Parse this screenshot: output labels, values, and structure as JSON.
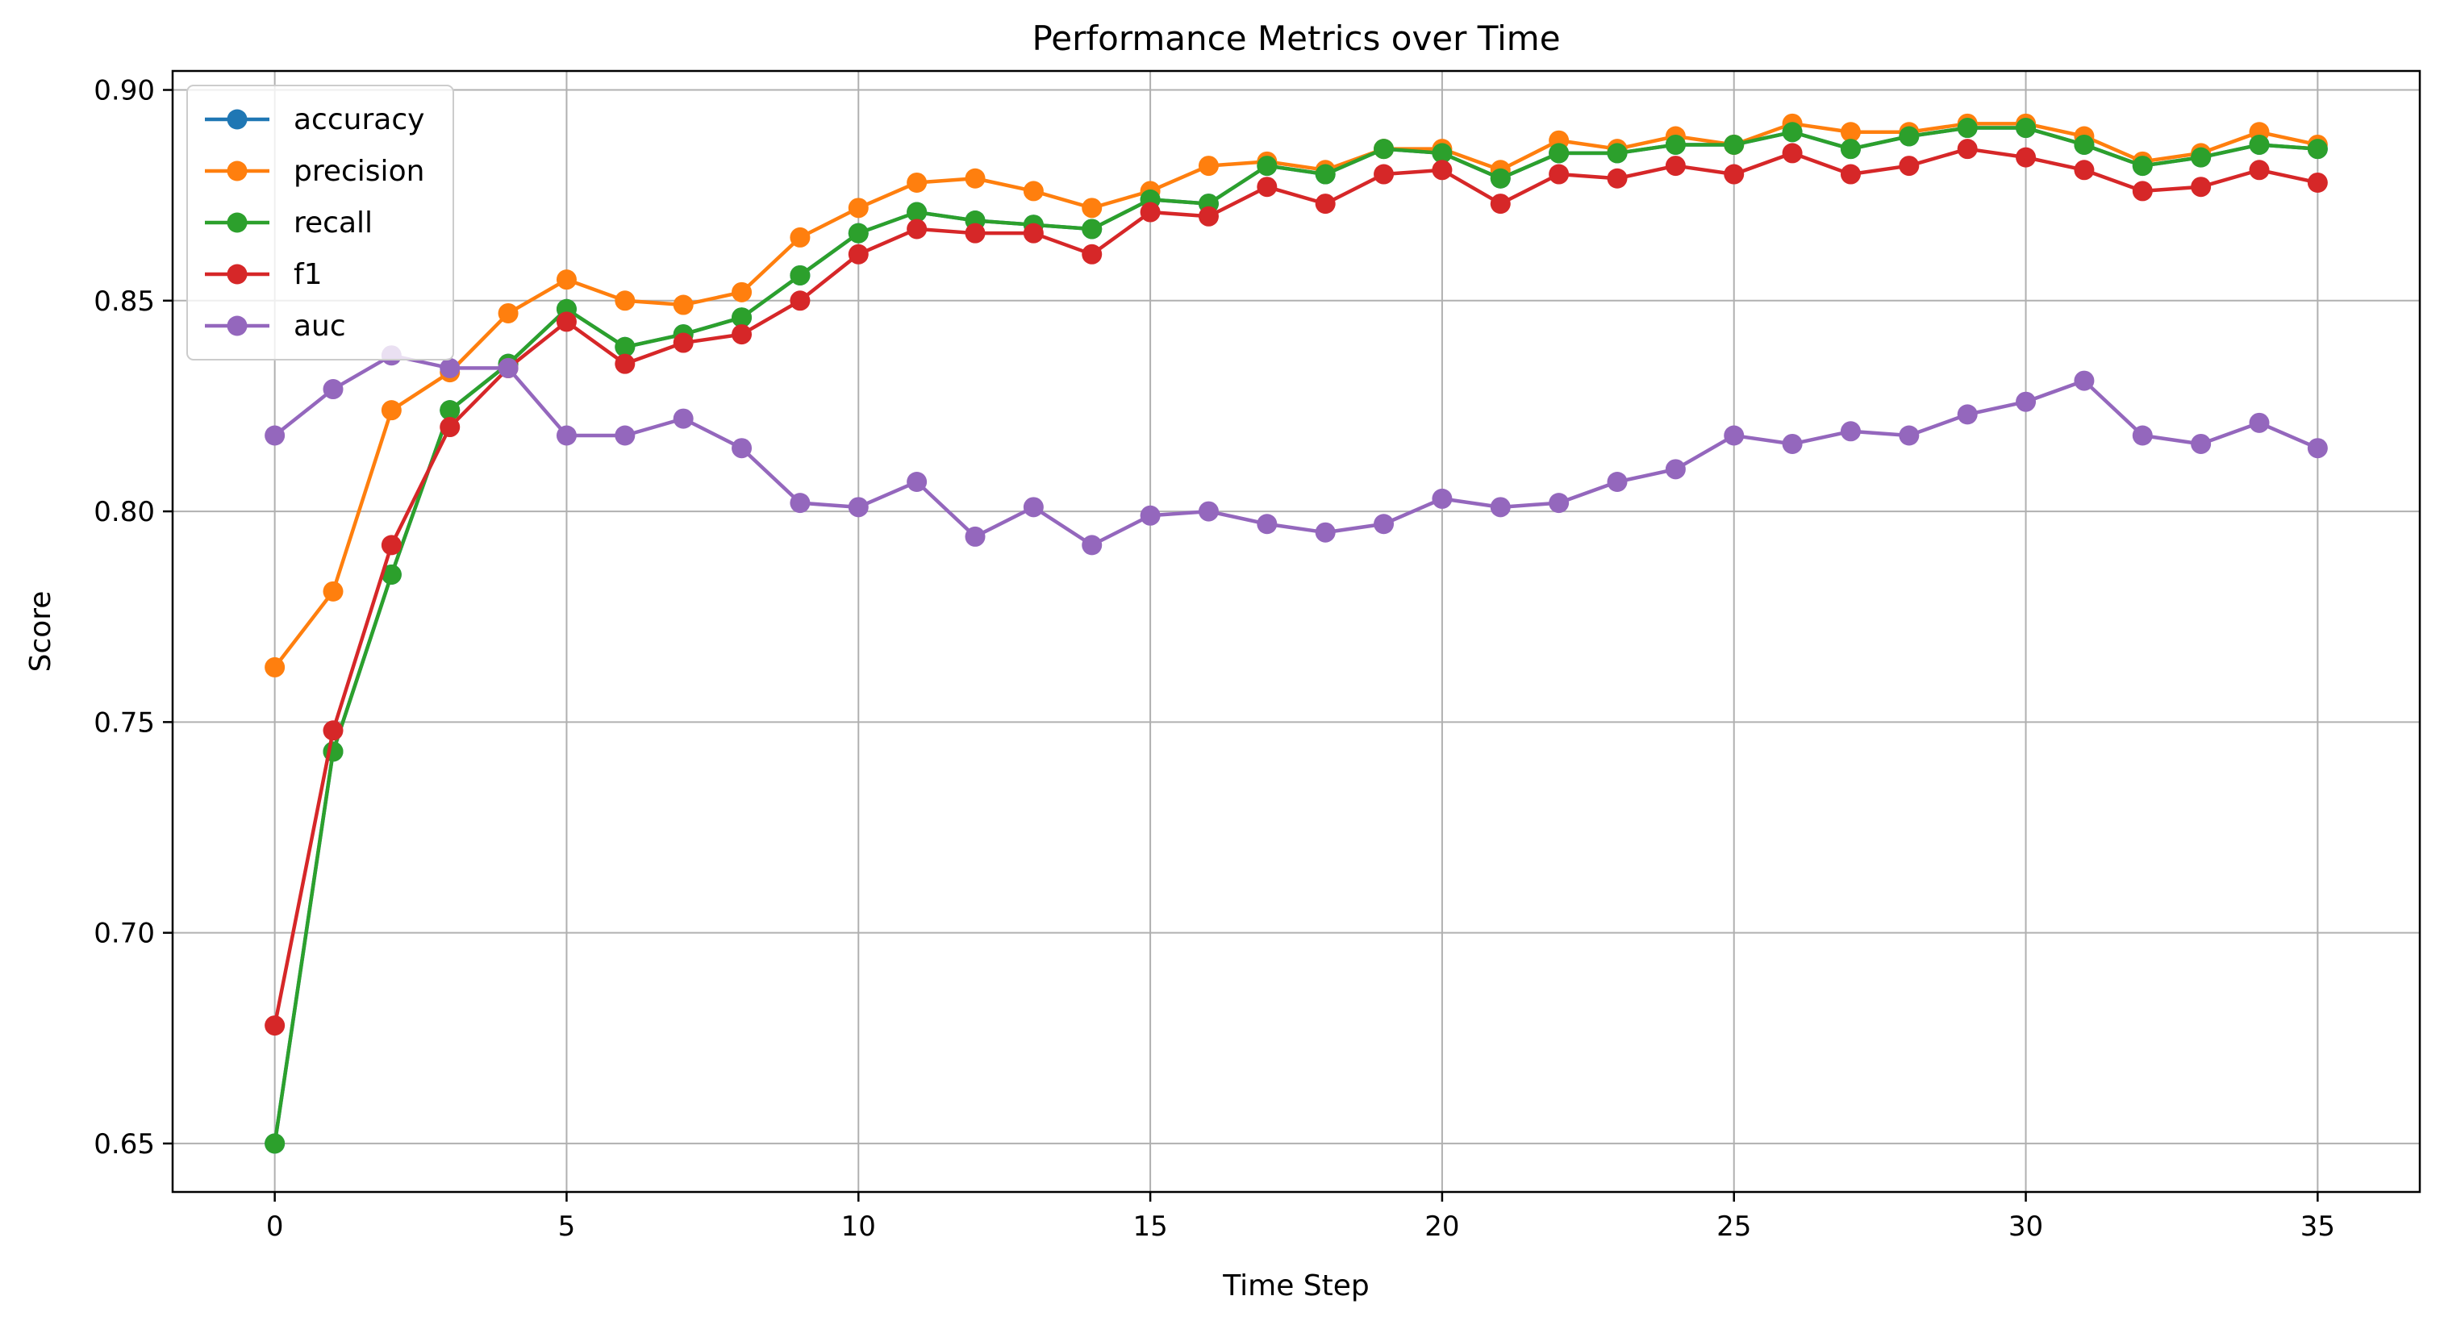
{
  "chart_data": {
    "type": "line",
    "title": "Performance Metrics over Time",
    "xlabel": "Time Step",
    "ylabel": "Score",
    "xlim": [
      -1.75,
      36.75
    ],
    "ylim": [
      0.6385,
      0.9045
    ],
    "x_ticks": [
      0,
      5,
      10,
      15,
      20,
      25,
      30,
      35
    ],
    "x_tick_labels": [
      "0",
      "5",
      "10",
      "15",
      "20",
      "25",
      "30",
      "35"
    ],
    "y_ticks": [
      0.65,
      0.7,
      0.75,
      0.8,
      0.85,
      0.9
    ],
    "y_tick_labels": [
      "0.65",
      "0.70",
      "0.75",
      "0.80",
      "0.85",
      "0.90"
    ],
    "grid": true,
    "legend_position": "top-left",
    "x": [
      0,
      1,
      2,
      3,
      4,
      5,
      6,
      7,
      8,
      9,
      10,
      11,
      12,
      13,
      14,
      15,
      16,
      17,
      18,
      19,
      20,
      21,
      22,
      23,
      24,
      25,
      26,
      27,
      28,
      29,
      30,
      31,
      32,
      33,
      34,
      35
    ],
    "series": [
      {
        "name": "accuracy",
        "color": "#1f77b4",
        "values": [
          0.65,
          0.743,
          0.785,
          0.824,
          0.835,
          0.848,
          0.839,
          0.842,
          0.846,
          0.856,
          0.866,
          0.871,
          0.869,
          0.868,
          0.867,
          0.874,
          0.873,
          0.882,
          0.88,
          0.886,
          0.885,
          0.879,
          0.885,
          0.885,
          0.887,
          0.887,
          0.89,
          0.886,
          0.889,
          0.891,
          0.891,
          0.887,
          0.882,
          0.884,
          0.887,
          0.886
        ]
      },
      {
        "name": "precision",
        "color": "#ff7f0e",
        "values": [
          0.763,
          0.781,
          0.824,
          0.833,
          0.847,
          0.855,
          0.85,
          0.849,
          0.852,
          0.865,
          0.872,
          0.878,
          0.879,
          0.876,
          0.872,
          0.876,
          0.882,
          0.883,
          0.881,
          0.886,
          0.886,
          0.881,
          0.888,
          0.886,
          0.889,
          0.887,
          0.892,
          0.89,
          0.89,
          0.892,
          0.892,
          0.889,
          0.883,
          0.885,
          0.89,
          0.887
        ]
      },
      {
        "name": "recall",
        "color": "#2ca02c",
        "values": [
          0.65,
          0.743,
          0.785,
          0.824,
          0.835,
          0.848,
          0.839,
          0.842,
          0.846,
          0.856,
          0.866,
          0.871,
          0.869,
          0.868,
          0.867,
          0.874,
          0.873,
          0.882,
          0.88,
          0.886,
          0.885,
          0.879,
          0.885,
          0.885,
          0.887,
          0.887,
          0.89,
          0.886,
          0.889,
          0.891,
          0.891,
          0.887,
          0.882,
          0.884,
          0.887,
          0.886
        ]
      },
      {
        "name": "f1",
        "color": "#d62728",
        "values": [
          0.678,
          0.748,
          0.792,
          0.82,
          0.834,
          0.845,
          0.835,
          0.84,
          0.842,
          0.85,
          0.861,
          0.867,
          0.866,
          0.866,
          0.861,
          0.871,
          0.87,
          0.877,
          0.873,
          0.88,
          0.881,
          0.873,
          0.88,
          0.879,
          0.882,
          0.88,
          0.885,
          0.88,
          0.882,
          0.886,
          0.884,
          0.881,
          0.876,
          0.877,
          0.881,
          0.878
        ]
      },
      {
        "name": "auc",
        "color": "#9467bd",
        "values": [
          0.818,
          0.829,
          0.837,
          0.834,
          0.834,
          0.818,
          0.818,
          0.822,
          0.815,
          0.802,
          0.801,
          0.807,
          0.794,
          0.801,
          0.792,
          0.799,
          0.8,
          0.797,
          0.795,
          0.797,
          0.803,
          0.801,
          0.802,
          0.807,
          0.81,
          0.818,
          0.816,
          0.819,
          0.818,
          0.823,
          0.826,
          0.831,
          0.818,
          0.816,
          0.821,
          0.815
        ]
      }
    ]
  }
}
